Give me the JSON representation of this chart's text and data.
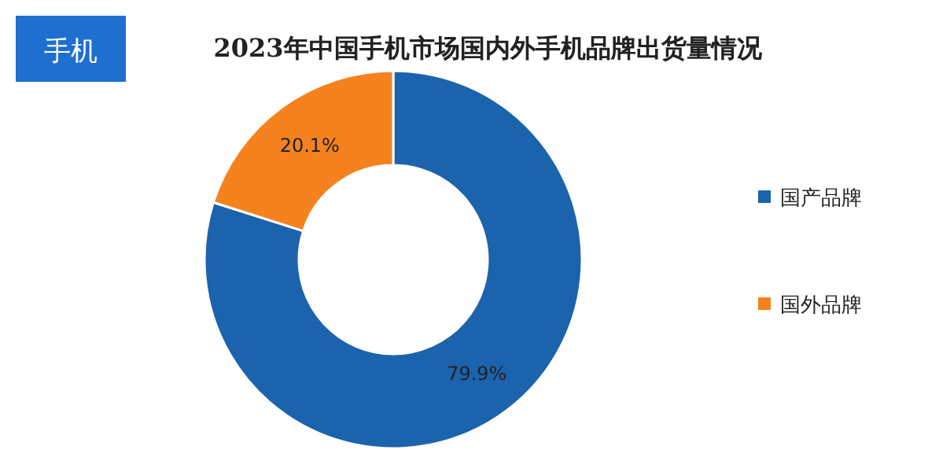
{
  "chart_data": {
    "type": "donut",
    "title": "2023年中国手机市场国内外手机品牌出货量情况",
    "annotations": [
      "手机"
    ],
    "categories": [
      "国产品牌",
      "国外品牌"
    ],
    "values": [
      79.9,
      20.1
    ],
    "colors": [
      "#1c63ad",
      "#f5821f"
    ],
    "value_labels": [
      "79.9%",
      "20.1%"
    ],
    "legend": "right"
  }
}
